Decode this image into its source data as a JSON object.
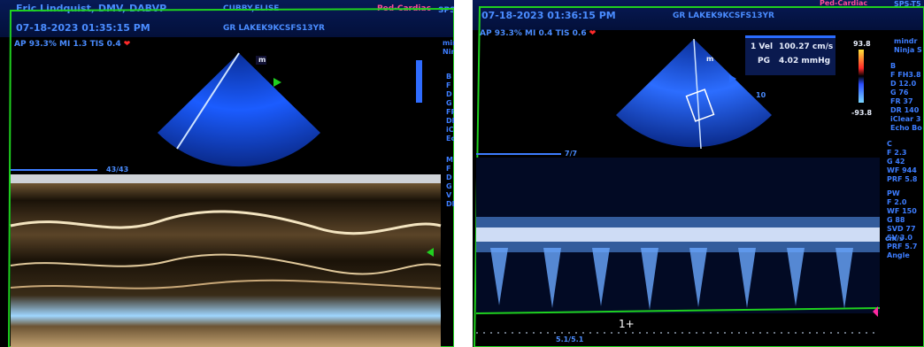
{
  "left": {
    "operator": "Eric Lindquist, DMV, DABVP",
    "patient": "CUBBY,ELISE",
    "preset": "Ped-Cardiac",
    "preset_right_cut": "SPS",
    "datetime": "07-18-2023  01:35:15 PM",
    "probe": "GR LAKEK9KCSFS13YR",
    "stats": "AP 93.3%  MI 1.3 TIS 0.4",
    "depth_marker": "43/43",
    "probe_marker": "m",
    "side_top": [
      "mindr",
      "Ninja"
    ],
    "side_list": [
      "B",
      "F FH",
      "D 9.",
      "G 76",
      "FR 2",
      "DR",
      "iCle",
      "Echo"
    ],
    "side_list_m": [
      "M",
      "F F",
      "D 9",
      "G 5",
      "V 2",
      "DR"
    ]
  },
  "right": {
    "preset_top_cut": "Ped-Cardiac",
    "preset_top_right": "SPS-T5",
    "datetime": "07-18-2023  01:36:15 PM",
    "probe": "GR LAKEK9KCSFS13YR",
    "stats": "AP 93.3%  MI 0.4 TIS 0.6",
    "probe_marker": "m",
    "vel_label": "1 Vel",
    "vel_value": "100.27 cm/s",
    "pg_label": "PG",
    "pg_value": "4.02 mmHg",
    "scale_top": "93.8",
    "scale_bottom": "-93.8",
    "depth_top": "7/7",
    "depth_bottom": "5.1/5.1",
    "depth_num": "10",
    "unit_right": "cm/s",
    "side_top": [
      "mindr",
      "Ninja S"
    ],
    "side_b": [
      "B",
      "F FH3.8",
      "D 12.0",
      "G 76",
      "FR 37",
      "DR 140",
      "iClear 3",
      "Echo Bo"
    ],
    "side_c": [
      "C",
      "F 2.3",
      "G 42",
      "WF 944",
      "PRF 5.8"
    ],
    "side_pw": [
      "PW",
      "F 2.0",
      "WF 150",
      "G 88",
      "SVD 77",
      "SV 3.0",
      "PRF 5.7",
      "Angle"
    ]
  }
}
